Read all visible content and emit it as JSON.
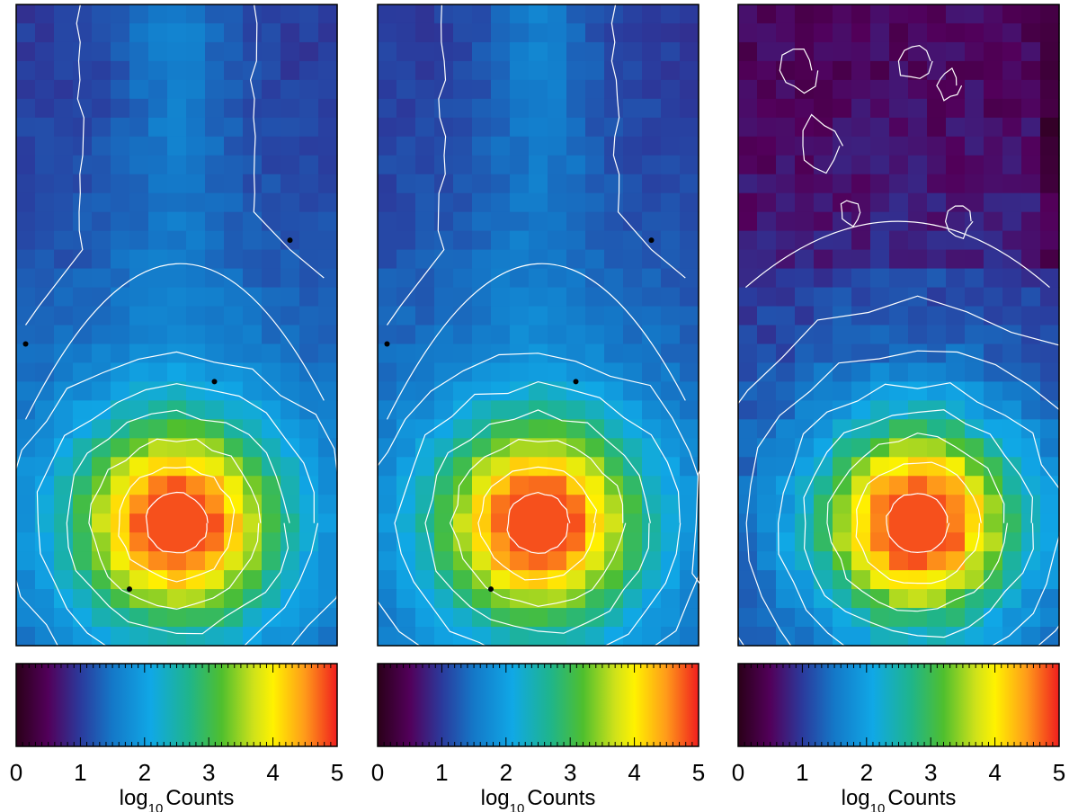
{
  "chart_data": [
    {
      "type": "heatmap",
      "grid": {
        "cols": 17,
        "rows": 34
      },
      "peak_cell": [
        8,
        27
      ],
      "peak_log_counts": 4.5,
      "colorbar": {
        "range": [
          0,
          5
        ],
        "ticks": [
          "0",
          "1",
          "2",
          "3",
          "4",
          "5"
        ],
        "label_main": "log",
        "label_sub": "10",
        "label_tail": "Counts"
      },
      "contours": true,
      "markers": [
        [
          0.5,
          18
        ],
        [
          10.5,
          20
        ],
        [
          14.5,
          12.5
        ],
        [
          6,
          31
        ]
      ],
      "style": "model"
    },
    {
      "type": "heatmap",
      "grid": {
        "cols": 17,
        "rows": 34
      },
      "peak_cell": [
        8,
        27
      ],
      "peak_log_counts": 4.5,
      "colorbar": {
        "range": [
          0,
          5
        ],
        "ticks": [
          "0",
          "1",
          "2",
          "3",
          "4",
          "5"
        ],
        "label_main": "log",
        "label_sub": "10",
        "label_tail": "Counts"
      },
      "contours": true,
      "markers": [
        [
          0.5,
          18
        ],
        [
          10.5,
          20
        ],
        [
          14.5,
          12.5
        ],
        [
          6,
          31
        ]
      ],
      "style": "model"
    },
    {
      "type": "heatmap",
      "grid": {
        "cols": 17,
        "rows": 34
      },
      "peak_cell": [
        9,
        27
      ],
      "peak_log_counts": 4.4,
      "colorbar": {
        "range": [
          0,
          5
        ],
        "ticks": [
          "0",
          "1",
          "2",
          "3",
          "4",
          "5"
        ],
        "label_main": "log",
        "label_sub": "10",
        "label_tail": "Counts"
      },
      "contours": true,
      "markers": [],
      "style": "data"
    }
  ]
}
